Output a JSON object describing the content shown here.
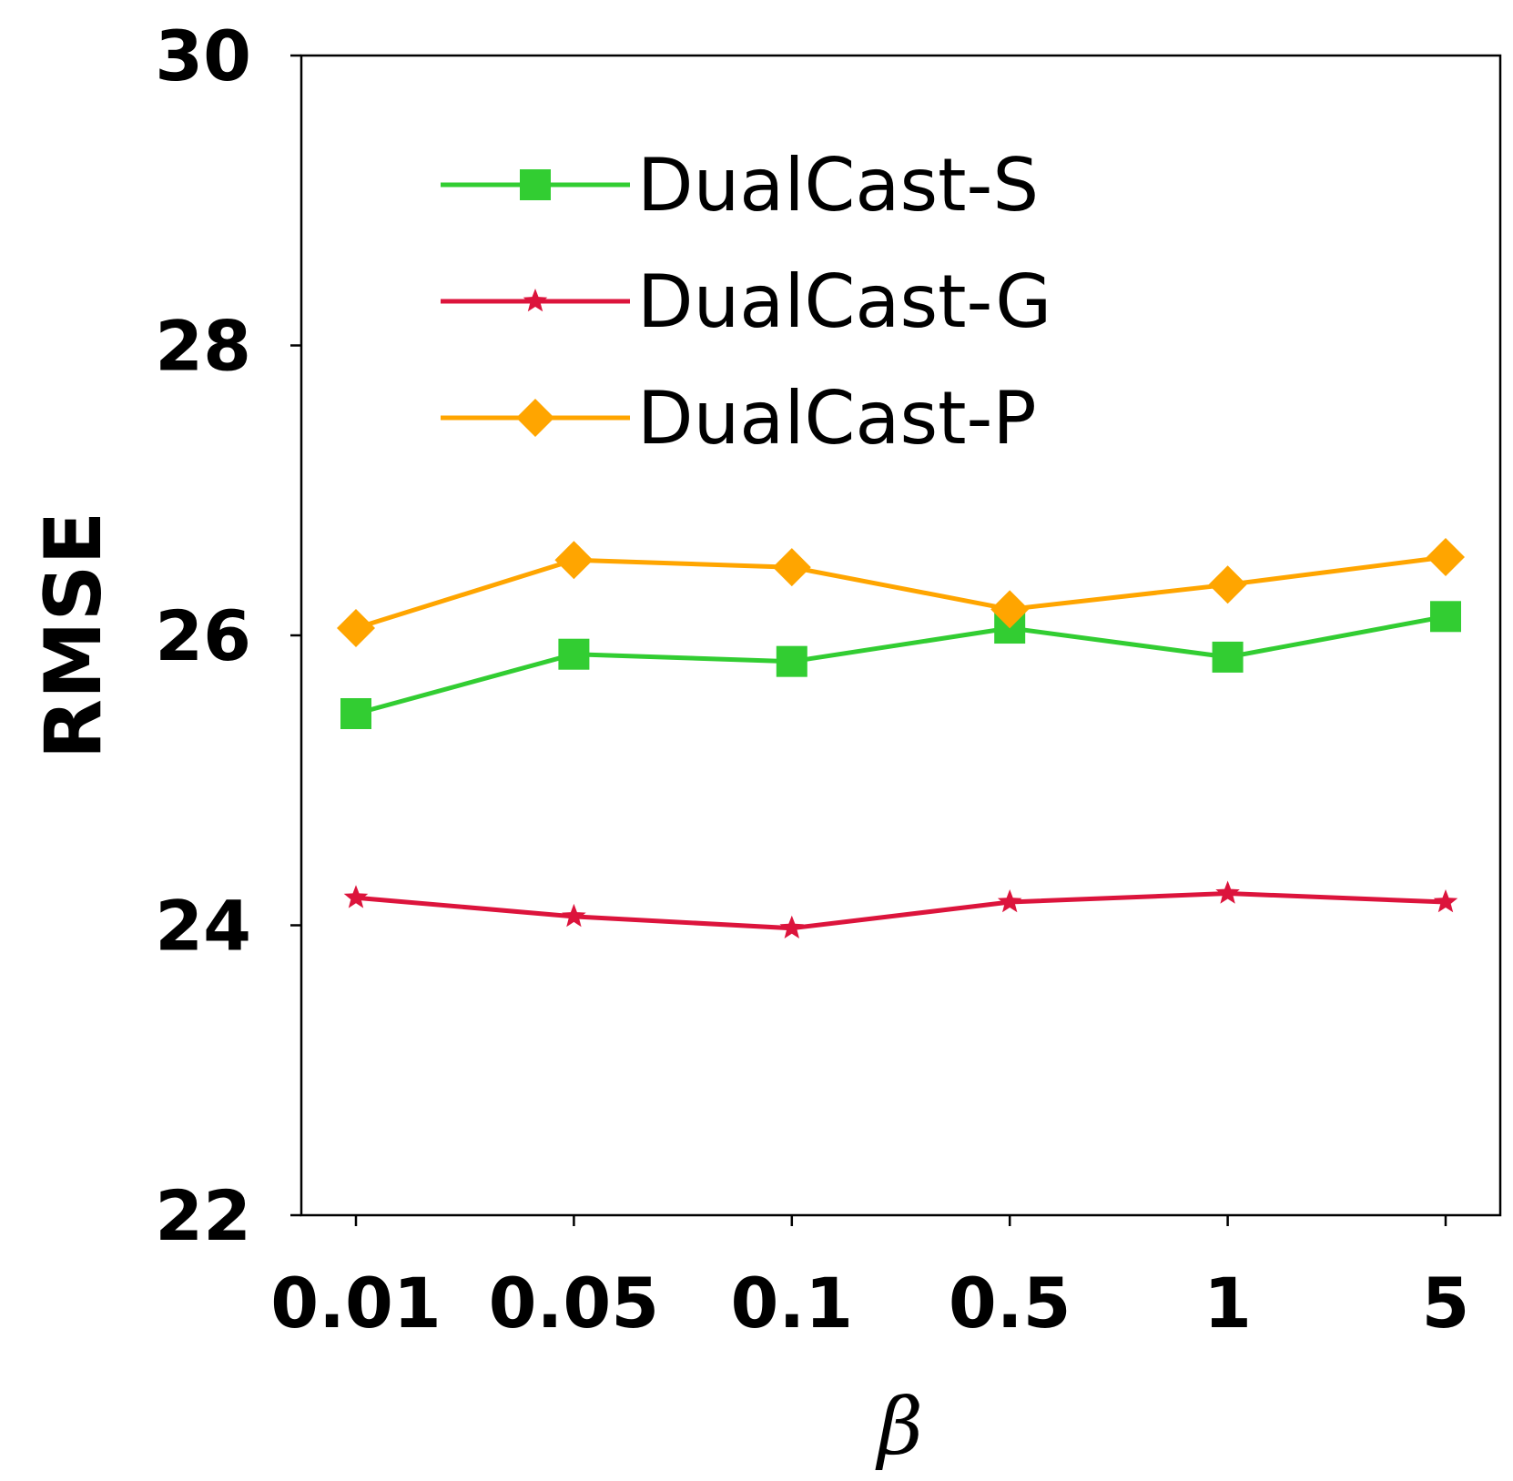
{
  "chart_data": {
    "type": "line",
    "title": "",
    "xlabel": "β",
    "ylabel": "RMSE",
    "categories": [
      "0.01",
      "0.05",
      "0.1",
      "0.5",
      "1",
      "5"
    ],
    "ylim": [
      22,
      30
    ],
    "yticks": [
      "22",
      "24",
      "26",
      "28",
      "30"
    ],
    "yticks_values": [
      22,
      24,
      26,
      28,
      30
    ],
    "legend_position": "upper-center",
    "series": [
      {
        "name": "DualCast-S",
        "color": "#32CD32",
        "marker": "square",
        "values": [
          25.46,
          25.87,
          25.82,
          26.05,
          25.85,
          26.13
        ]
      },
      {
        "name": "DualCast-G",
        "color": "#DC143C",
        "marker": "star",
        "values": [
          24.19,
          24.06,
          23.98,
          24.16,
          24.22,
          24.16
        ]
      },
      {
        "name": "DualCast-P",
        "color": "#FFA500",
        "marker": "diamond",
        "values": [
          26.05,
          26.52,
          26.47,
          26.18,
          26.35,
          26.54
        ]
      }
    ]
  }
}
